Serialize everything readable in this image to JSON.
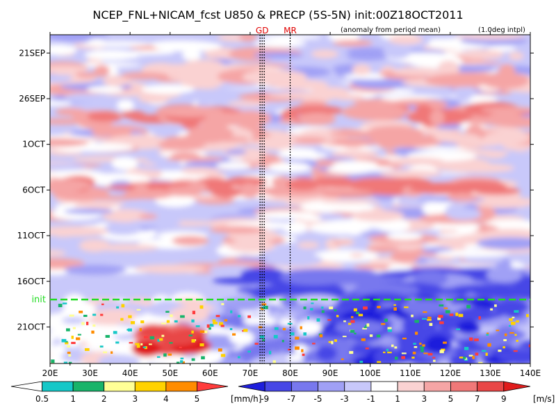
{
  "chart_data": {
    "type": "heatmap",
    "title": "NCEP_FNL+NICAM_fcst U850 & PRECP (5S-5N) init:00Z18OCT2011",
    "subtitle": "(anomaly from period mean)",
    "resolution_note": "(1.0deg intpl)",
    "xaxis": {
      "ticks": [
        "20E",
        "30E",
        "40E",
        "50E",
        "60E",
        "70E",
        "80E",
        "90E",
        "100E",
        "110E",
        "120E",
        "130E",
        "140E"
      ],
      "values": [
        20,
        30,
        40,
        50,
        60,
        70,
        80,
        90,
        100,
        110,
        120,
        130,
        140
      ],
      "range": [
        20,
        140
      ]
    },
    "yaxis": {
      "ticks": [
        "21SEP",
        "26SEP",
        "1OCT",
        "6OCT",
        "11OCT",
        "16OCT",
        "21OCT"
      ],
      "direction": "time increases downward",
      "range": [
        "19SEP",
        "25OCT"
      ]
    },
    "reference_lines": [
      {
        "label": "GD",
        "lon": 73
      },
      {
        "label": "MR",
        "lon": 80
      }
    ],
    "init_line": {
      "label": "init",
      "date": "18OCT",
      "color": "#22dd22"
    },
    "precip_colorbar": {
      "unit": "[mm/h]",
      "labels": [
        "0.5",
        "1",
        "2",
        "3",
        "4",
        "5"
      ],
      "values": [
        0.5,
        1,
        2,
        3,
        4,
        5
      ],
      "colors": [
        "#ffffff",
        "#16c8c8",
        "#18b46a",
        "#ffff96",
        "#ffd200",
        "#ff8c00",
        "#ff3c3c"
      ]
    },
    "u850_colorbar": {
      "unit": "[m/s]",
      "labels": [
        "-9",
        "-7",
        "-5",
        "-3",
        "-1",
        "1",
        "3",
        "5",
        "7",
        "9"
      ],
      "values": [
        -9,
        -7,
        -5,
        -3,
        -1,
        1,
        3,
        5,
        7,
        9
      ],
      "colors": [
        "#1e1edc",
        "#4646e6",
        "#7878ee",
        "#a0a0f5",
        "#c8c8fa",
        "#ffffff",
        "#fad2d2",
        "#f5a5a5",
        "#f07878",
        "#e84646",
        "#e01c1c"
      ]
    }
  }
}
